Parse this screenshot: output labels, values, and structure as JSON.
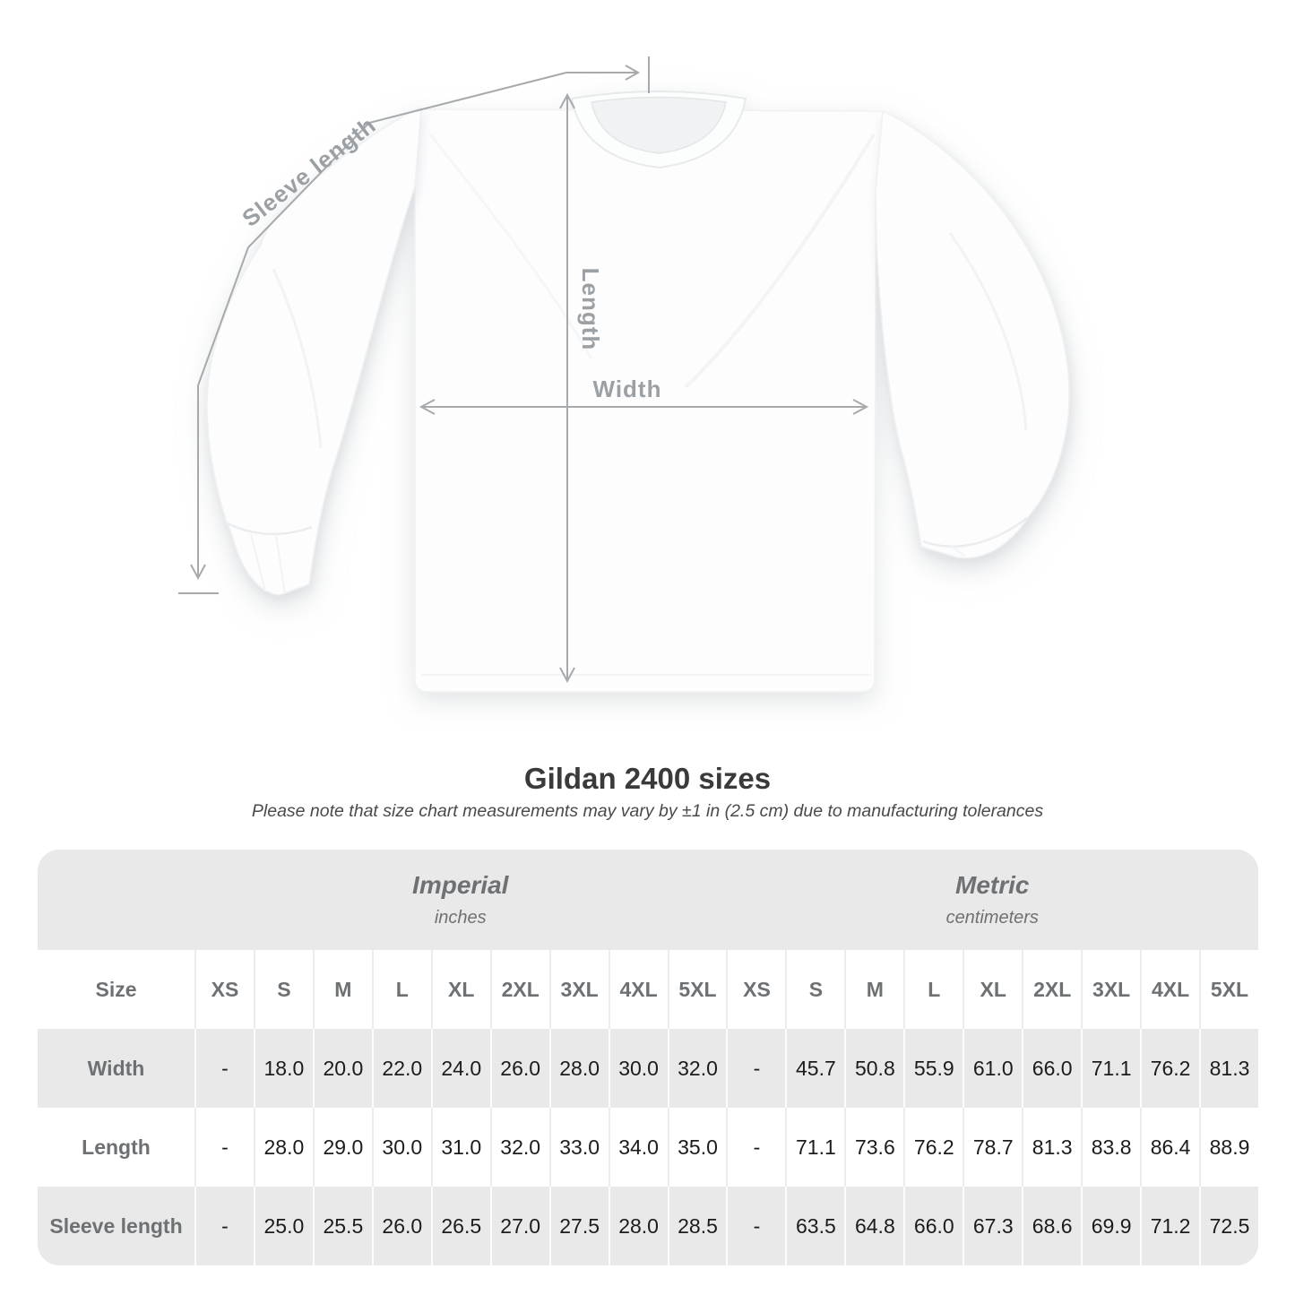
{
  "diagram": {
    "sleeve_length_label": "Sleeve length",
    "length_label": "Length",
    "width_label": "Width"
  },
  "header": {
    "title": "Gildan 2400 sizes",
    "subtitle": "Please note that size chart measurements may vary by ±1 in (2.5 cm) due to manufacturing tolerances"
  },
  "table": {
    "corner_label": "Size",
    "unit_groups": [
      {
        "label": "Imperial",
        "unit": "inches"
      },
      {
        "label": "Metric",
        "unit": "centimeters"
      }
    ],
    "sizes": [
      "XS",
      "S",
      "M",
      "L",
      "XL",
      "2XL",
      "3XL",
      "4XL",
      "5XL"
    ],
    "rows": [
      {
        "label": "Width",
        "imperial": [
          "-",
          "18.0",
          "20.0",
          "22.0",
          "24.0",
          "26.0",
          "28.0",
          "30.0",
          "32.0"
        ],
        "metric": [
          "-",
          "45.7",
          "50.8",
          "55.9",
          "61.0",
          "66.0",
          "71.1",
          "76.2",
          "81.3"
        ]
      },
      {
        "label": "Length",
        "imperial": [
          "-",
          "28.0",
          "29.0",
          "30.0",
          "31.0",
          "32.0",
          "33.0",
          "34.0",
          "35.0"
        ],
        "metric": [
          "-",
          "71.1",
          "73.6",
          "76.2",
          "78.7",
          "81.3",
          "83.8",
          "86.4",
          "88.9"
        ]
      },
      {
        "label": "Sleeve length",
        "imperial": [
          "-",
          "25.0",
          "25.5",
          "26.0",
          "26.5",
          "27.0",
          "27.5",
          "28.0",
          "28.5"
        ],
        "metric": [
          "-",
          "63.5",
          "64.8",
          "66.0",
          "67.3",
          "68.6",
          "69.9",
          "71.2",
          "72.5"
        ]
      }
    ]
  },
  "colors": {
    "annotation_line": "#a7aaad",
    "annotation_text": "#9ba0a5",
    "table_band": "#e9e9e9",
    "header_text": "#6d7174",
    "value_text": "#1c1c1e",
    "title_text": "#3a3a3a"
  }
}
